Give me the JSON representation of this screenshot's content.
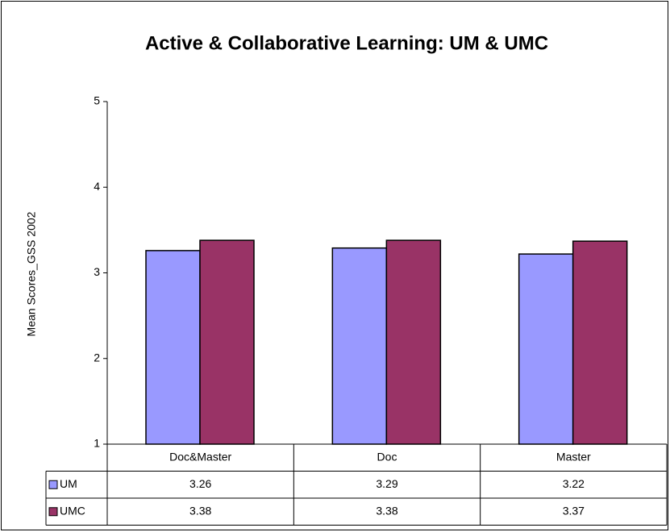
{
  "chart_data": {
    "type": "bar",
    "title": "Active & Collaborative Learning:  UM & UMC",
    "y_label": "Mean Scores_GSS 2002",
    "categories": [
      "Doc&Master",
      "Doc",
      "Master"
    ],
    "series": [
      {
        "name": "UM",
        "color": "#9999ff",
        "values": [
          3.26,
          3.29,
          3.22
        ]
      },
      {
        "name": "UMC",
        "color": "#993366",
        "values": [
          3.38,
          3.38,
          3.37
        ]
      }
    ],
    "ylim": [
      1,
      5
    ],
    "yticks": [
      1,
      2,
      3,
      4,
      5
    ],
    "grid": false
  }
}
